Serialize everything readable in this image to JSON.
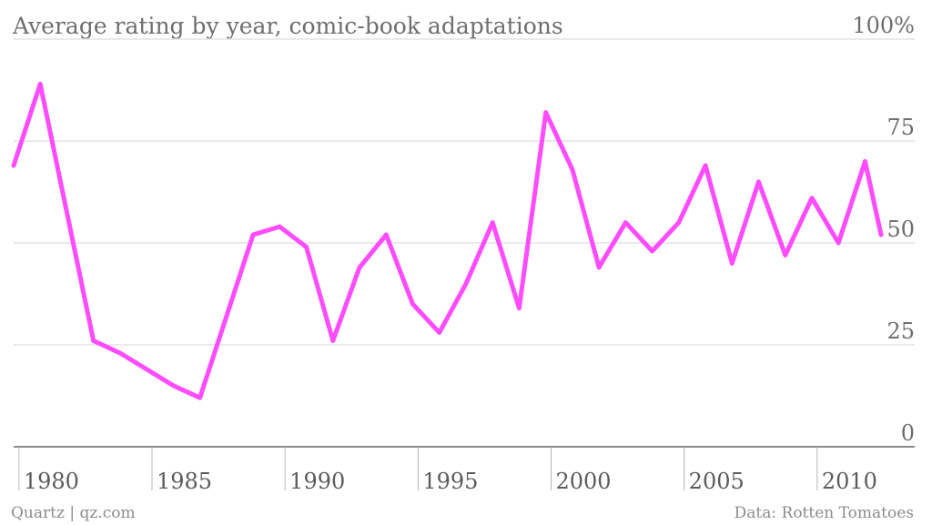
{
  "chart_data": {
    "type": "line",
    "title": "Average rating by year, comic-book adaptations",
    "xlabel": "",
    "ylabel": "",
    "xlim": [
      1979.8,
      2012.4
    ],
    "ylim": [
      0,
      100
    ],
    "y_ticks": [
      {
        "value": 100,
        "label": "100%"
      },
      {
        "value": 75,
        "label": "75"
      },
      {
        "value": 50,
        "label": "50"
      },
      {
        "value": 25,
        "label": "25"
      },
      {
        "value": 0,
        "label": "0"
      }
    ],
    "x_ticks": [
      {
        "value": 1980,
        "label": "1980"
      },
      {
        "value": 1985,
        "label": "1985"
      },
      {
        "value": 1990,
        "label": "1990"
      },
      {
        "value": 1995,
        "label": "1995"
      },
      {
        "value": 2000,
        "label": "2000"
      },
      {
        "value": 2005,
        "label": "2005"
      },
      {
        "value": 2010,
        "label": "2010"
      }
    ],
    "grid": true,
    "series": [
      {
        "color": "#ff4cff",
        "points": [
          {
            "x": 1979.8,
            "y": 69
          },
          {
            "x": 1980.8,
            "y": 89
          },
          {
            "x": 1982.8,
            "y": 26
          },
          {
            "x": 1983.8,
            "y": 23
          },
          {
            "x": 1984.8,
            "y": 19
          },
          {
            "x": 1985.8,
            "y": 15
          },
          {
            "x": 1986.8,
            "y": 12
          },
          {
            "x": 1988.8,
            "y": 52
          },
          {
            "x": 1989.8,
            "y": 54
          },
          {
            "x": 1990.8,
            "y": 49
          },
          {
            "x": 1991.8,
            "y": 26
          },
          {
            "x": 1992.8,
            "y": 44
          },
          {
            "x": 1993.8,
            "y": 52
          },
          {
            "x": 1994.8,
            "y": 35
          },
          {
            "x": 1995.8,
            "y": 28
          },
          {
            "x": 1996.8,
            "y": 40
          },
          {
            "x": 1997.8,
            "y": 55
          },
          {
            "x": 1998.8,
            "y": 34
          },
          {
            "x": 1999.8,
            "y": 82
          },
          {
            "x": 2000.8,
            "y": 68
          },
          {
            "x": 2001.8,
            "y": 44
          },
          {
            "x": 2002.8,
            "y": 55
          },
          {
            "x": 2003.8,
            "y": 48
          },
          {
            "x": 2004.8,
            "y": 55
          },
          {
            "x": 2005.8,
            "y": 69
          },
          {
            "x": 2006.8,
            "y": 45
          },
          {
            "x": 2007.8,
            "y": 65
          },
          {
            "x": 2008.8,
            "y": 47
          },
          {
            "x": 2009.8,
            "y": 61
          },
          {
            "x": 2010.8,
            "y": 50
          },
          {
            "x": 2011.8,
            "y": 70
          },
          {
            "x": 2012.4,
            "y": 52
          }
        ]
      }
    ]
  },
  "footer": {
    "source_left": "Quartz | qz.com",
    "source_right": "Data: Rotten Tomatoes"
  }
}
